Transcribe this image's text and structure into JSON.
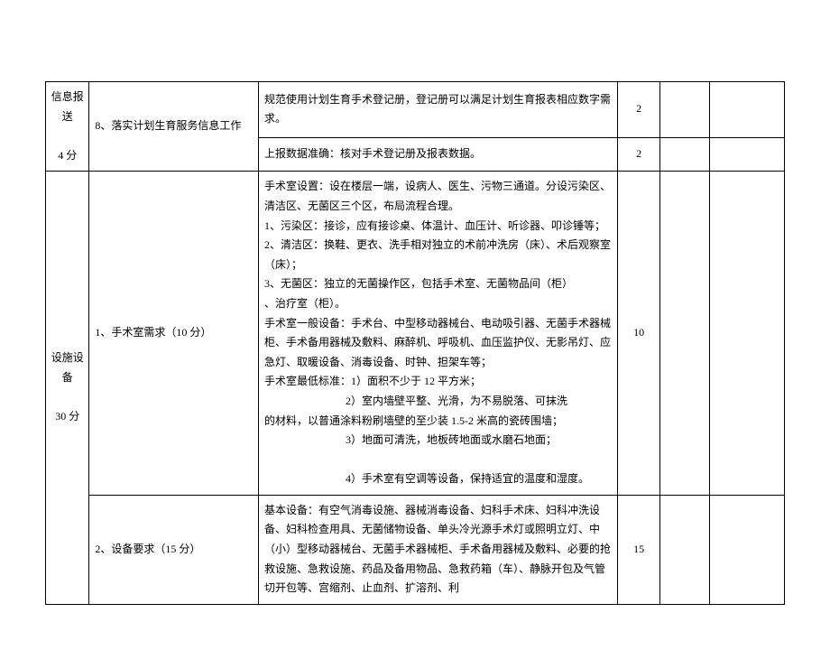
{
  "table": {
    "rows": [
      {
        "category": "信息报送\n\n4 分",
        "category_rowspan": 2,
        "item": "8、落实计划生育服务信息工作",
        "item_rowspan": 2,
        "desc": "规范使用计划生育手术登记册，登记册可以满足计划生育报表相应数字需求。",
        "score": "2"
      },
      {
        "desc": "上报数据准确：核对手术登记册及报表数据。",
        "score": "2"
      },
      {
        "category": "设施设备\n\n30 分",
        "category_rowspan": 2,
        "item": "1、手术室需求（10 分）",
        "desc_html": true,
        "desc": "手术室设置：设在楼层一端，设病人、医生、污物三通道。分设污染区、清洁区、无菌区三个区，布局流程合理。<br>1、污染区：接诊，应有接诊桌、体温计、血压计、听诊器、叩诊锤等；<br>2、清洁区：换鞋、更衣、洗手相对独立的术前冲洗房（床）、术后观察室（床）；<br>3、无菌区：独立的无菌操作区，包括手术室、无菌物品间（柜）<br>、治疗室（柜）。<br>手术室一般设备：手术台、中型移动器械台、电动吸引器、无菌手术器械柜、手术备用器械及敷料、麻醉机、呼吸机、血压监护仪、无影吊灯、应急灯、取暖设备、消毒设备、时钟、担架车等；<br>手术室最低标准：1）面积不少于 12 平方米；<br><span class=\"desc-indent\">2）室内墙壁平整、光滑，为不易脱落、可抹洗</span>的材料，以普通涂料粉刷墙壁的至少装 1.5-2 米高的瓷砖围墙；<br><span class=\"desc-indent\">3）地面可清洗，地板砖地面或水磨石地面；</span><br><span class=\"desc-indent\">4）手术室有空调等设备，保持适宜的温度和湿度。</span>",
        "score": "10"
      },
      {
        "item": "2、设备要求（15 分）",
        "desc": "基本设备：有空气消毒设施、器械消毒设备、妇科手术床、妇科冲洗设备、妇科检查用具、无菌储物设备、单头冷光源手术灯或照明立灯、中（小）型移动器械台、无菌手术器械柜、手术备用器械及敷料、必要的抢救设施、急救设施、药品及备用物品、急救药箱（车）、静脉开包及气管切开包等、宫缩剂、止血剂、扩溶剂、利",
        "score": "15"
      }
    ]
  }
}
